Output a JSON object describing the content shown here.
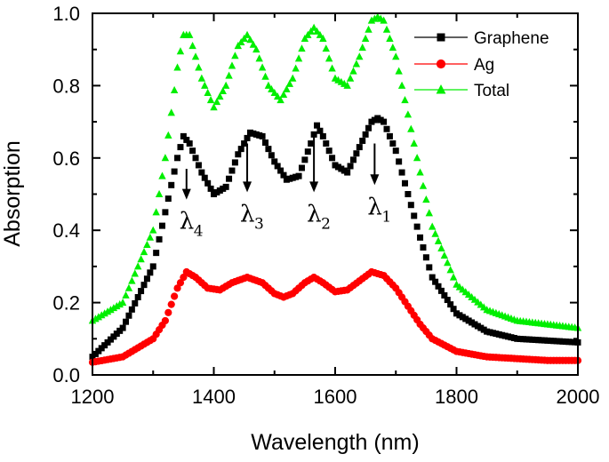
{
  "chart_data": {
    "type": "scatter",
    "xlabel": "Wavelength (nm)",
    "ylabel": "Absorption",
    "xlim": [
      1200,
      2000
    ],
    "ylim": [
      0.0,
      1.0
    ],
    "xticks": [
      "1200",
      "1400",
      "1600",
      "1800",
      "2000"
    ],
    "yticks": [
      "0.0",
      "0.2",
      "0.4",
      "0.6",
      "0.8",
      "1.0"
    ],
    "legend_position": "top-right",
    "series": [
      {
        "name": "Graphene",
        "color": "#000000",
        "marker": "square",
        "x": [
          1200,
          1250,
          1300,
          1320,
          1340,
          1350,
          1360,
          1380,
          1400,
          1420,
          1440,
          1460,
          1480,
          1500,
          1520,
          1540,
          1560,
          1570,
          1580,
          1600,
          1620,
          1640,
          1660,
          1670,
          1680,
          1700,
          1720,
          1740,
          1760,
          1800,
          1850,
          1900,
          1950,
          2000
        ],
        "y": [
          0.05,
          0.13,
          0.3,
          0.45,
          0.6,
          0.66,
          0.64,
          0.56,
          0.5,
          0.52,
          0.61,
          0.67,
          0.66,
          0.59,
          0.54,
          0.55,
          0.64,
          0.69,
          0.66,
          0.58,
          0.56,
          0.63,
          0.7,
          0.71,
          0.7,
          0.62,
          0.5,
          0.38,
          0.27,
          0.17,
          0.12,
          0.1,
          0.095,
          0.09
        ]
      },
      {
        "name": "Ag",
        "color": "#ff0000",
        "marker": "circle",
        "x": [
          1200,
          1250,
          1300,
          1320,
          1340,
          1355,
          1370,
          1390,
          1410,
          1430,
          1455,
          1480,
          1500,
          1515,
          1530,
          1550,
          1565,
          1580,
          1600,
          1620,
          1640,
          1660,
          1680,
          1700,
          1720,
          1740,
          1760,
          1800,
          1850,
          1900,
          1950,
          2000
        ],
        "y": [
          0.035,
          0.05,
          0.1,
          0.15,
          0.24,
          0.285,
          0.27,
          0.24,
          0.235,
          0.255,
          0.27,
          0.255,
          0.225,
          0.215,
          0.225,
          0.255,
          0.27,
          0.255,
          0.23,
          0.235,
          0.26,
          0.285,
          0.275,
          0.24,
          0.19,
          0.14,
          0.1,
          0.065,
          0.05,
          0.045,
          0.04,
          0.04
        ]
      },
      {
        "name": "Total",
        "color": "#00ee00",
        "marker": "triangle",
        "x": [
          1200,
          1250,
          1300,
          1320,
          1340,
          1350,
          1360,
          1380,
          1400,
          1420,
          1440,
          1455,
          1470,
          1490,
          1510,
          1530,
          1550,
          1565,
          1580,
          1600,
          1620,
          1640,
          1660,
          1670,
          1680,
          1700,
          1720,
          1740,
          1760,
          1800,
          1850,
          1900,
          1950,
          2000
        ],
        "y": [
          0.15,
          0.2,
          0.4,
          0.6,
          0.85,
          0.94,
          0.94,
          0.82,
          0.74,
          0.8,
          0.91,
          0.94,
          0.9,
          0.8,
          0.76,
          0.82,
          0.93,
          0.96,
          0.93,
          0.82,
          0.8,
          0.88,
          0.98,
          0.99,
          0.98,
          0.88,
          0.72,
          0.56,
          0.41,
          0.25,
          0.18,
          0.15,
          0.14,
          0.13
        ]
      }
    ],
    "annotations": [
      {
        "label": "λ",
        "sub": "4",
        "x": 1355,
        "y_from": 0.57,
        "y_to": 0.49
      },
      {
        "label": "λ",
        "sub": "3",
        "x": 1455,
        "y_from": 0.64,
        "y_to": 0.51
      },
      {
        "label": "λ",
        "sub": "2",
        "x": 1565,
        "y_from": 0.66,
        "y_to": 0.51
      },
      {
        "label": "λ",
        "sub": "1",
        "x": 1665,
        "y_from": 0.64,
        "y_to": 0.53
      }
    ]
  }
}
